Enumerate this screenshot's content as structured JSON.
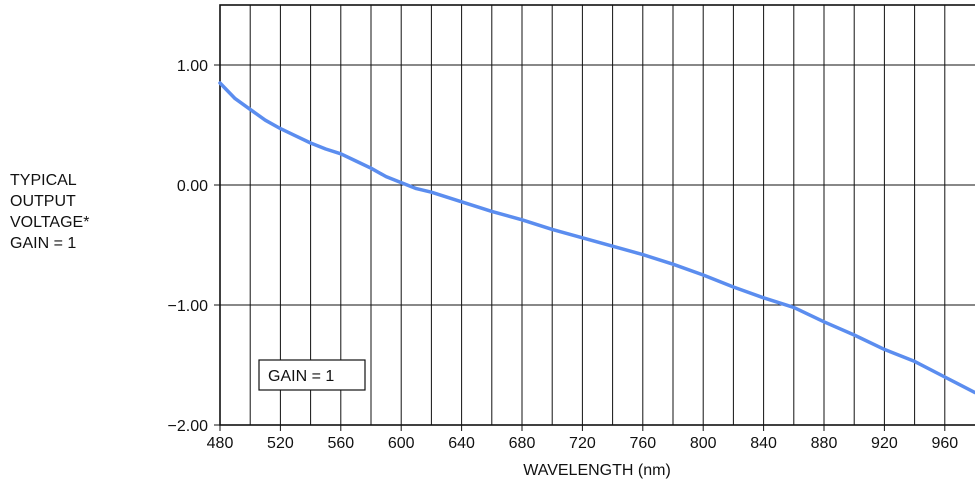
{
  "chart_data": {
    "type": "line",
    "title": "",
    "xlabel": "WAVELENGTH (nm)",
    "ylabel_lines": [
      "TYPICAL",
      "OUTPUT",
      "VOLTAGE*",
      "GAIN = 1"
    ],
    "annotation": "GAIN = 1",
    "xlim": [
      480,
      980
    ],
    "ylim": [
      -2.0,
      1.5
    ],
    "x_ticks": [
      480,
      520,
      560,
      600,
      640,
      680,
      720,
      760,
      800,
      840,
      880,
      920,
      960
    ],
    "x_tick_labels": [
      "480",
      "520",
      "560",
      "600",
      "640",
      "680",
      "720",
      "760",
      "800",
      "840",
      "880",
      "920",
      "960"
    ],
    "y_ticks": [
      -2.0,
      -1.0,
      0.0,
      1.0
    ],
    "y_tick_labels": [
      "−2.00",
      "−1.00",
      "0.00",
      "1.00"
    ],
    "grid": {
      "vertical": true,
      "horizontal": true
    },
    "series": [
      {
        "color": "#5b8def",
        "x": [
          480,
          490,
          500,
          510,
          520,
          530,
          540,
          550,
          560,
          570,
          580,
          590,
          600,
          610,
          620,
          640,
          660,
          680,
          700,
          720,
          740,
          760,
          780,
          800,
          820,
          840,
          860,
          880,
          900,
          920,
          940,
          960,
          980
        ],
        "y": [
          0.85,
          0.72,
          0.63,
          0.54,
          0.47,
          0.41,
          0.35,
          0.3,
          0.26,
          0.2,
          0.14,
          0.07,
          0.02,
          -0.03,
          -0.06,
          -0.14,
          -0.22,
          -0.29,
          -0.37,
          -0.44,
          -0.51,
          -0.58,
          -0.66,
          -0.75,
          -0.85,
          -0.94,
          -1.02,
          -1.14,
          -1.25,
          -1.37,
          -1.47,
          -1.6,
          -1.73
        ]
      }
    ]
  }
}
